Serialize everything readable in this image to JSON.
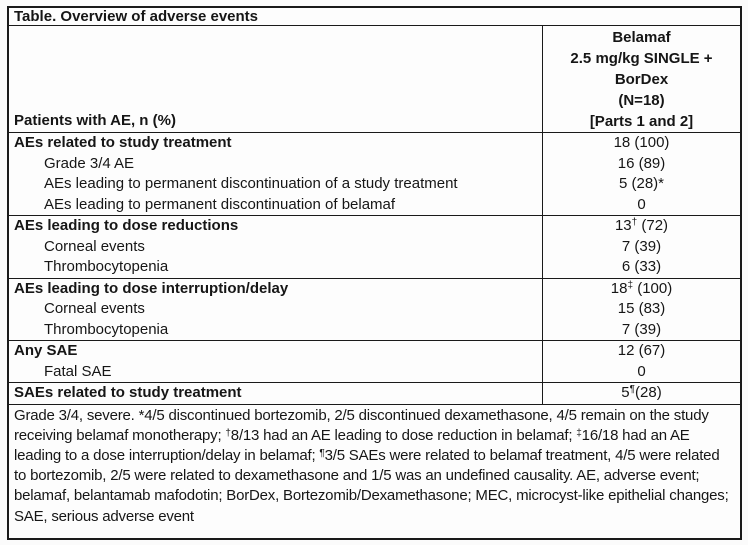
{
  "title": "Table. Overview of adverse events",
  "header": {
    "left_label": "Patients with AE, n (%)",
    "right_lines": [
      "Belamaf",
      "2.5 mg/kg SINGLE +",
      "BorDex",
      "(N=18)",
      "[Parts 1 and 2]"
    ]
  },
  "sections": [
    {
      "rows": [
        {
          "label": "AEs related to study treatment",
          "v1": "18 (100)"
        },
        {
          "label": "Grade 3/4 AE",
          "v1": "16 (89)"
        },
        {
          "label": "AEs leading to permanent discontinuation of a study treatment",
          "v1": "5 (28)*"
        },
        {
          "label": "AEs leading to permanent discontinuation of belamaf",
          "v1": "0"
        }
      ]
    },
    {
      "rows": [
        {
          "label": "AEs leading to dose reductions",
          "v1": "13",
          "sup": "†",
          "v2": " (72)"
        },
        {
          "label": "Corneal events",
          "v1": "7 (39)"
        },
        {
          "label": "Thrombocytopenia",
          "v1": "6 (33)"
        }
      ]
    },
    {
      "rows": [
        {
          "label": "AEs leading to dose interruption/delay",
          "v1": "18",
          "sup": "‡",
          "v2": " (100)"
        },
        {
          "label": "Corneal events",
          "v1": "15 (83)"
        },
        {
          "label": "Thrombocytopenia",
          "v1": "7 (39)"
        }
      ]
    },
    {
      "rows": [
        {
          "label": "Any SAE",
          "v1": "12 (67)"
        },
        {
          "label": "Fatal SAE",
          "v1": "0"
        }
      ]
    },
    {
      "rows": [
        {
          "label": "SAEs related to study treatment",
          "v1": "5",
          "sup": "¶",
          "v2": "(28)"
        }
      ]
    }
  ],
  "footnote": [
    {
      "t": "Grade 3/4, severe. *4/5 discontinued bortezomib, 2/5 discontinued dexamethasone, 4/5 remain on the study receiving belamaf monotherapy; "
    },
    {
      "s": "†"
    },
    {
      "t": "8/13 had an AE leading to dose reduction in belamaf; "
    },
    {
      "s": "‡"
    },
    {
      "t": "16/18 had an AE leading to a dose interruption/delay in belamaf; "
    },
    {
      "s": "¶"
    },
    {
      "t": "3/5 SAEs were related to belamaf treatment, 4/5 were related to bortezomib, 2/5 were related to dexamethasone and 1/5 was an undefined causality. AE, adverse event; belamaf, belantamab mafodotin; BorDex, Bortezomib/Dexamethasone; MEC, microcyst-like epithelial changes; SAE, serious adverse event"
    }
  ],
  "colors": {
    "border": "#1a1a1a",
    "text": "#161616",
    "background": "#fdfdfd"
  }
}
